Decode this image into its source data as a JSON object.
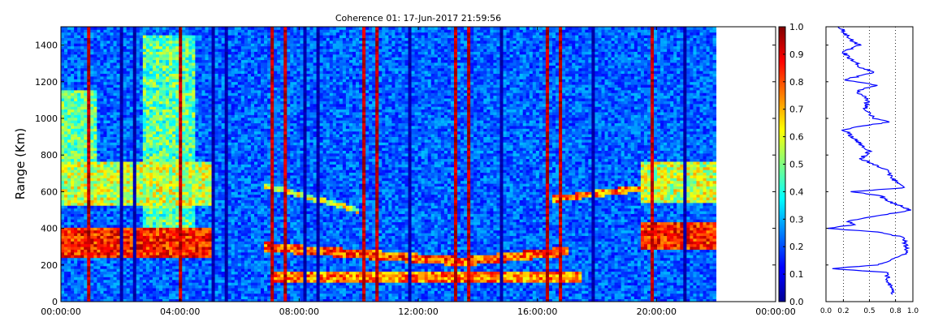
{
  "chart_data": [
    {
      "type": "heatmap",
      "title": "Coherence 01: 17-Jun-2017 21:59:56",
      "ylabel": "Range (Km)",
      "xlabel": "",
      "x_tick_labels": [
        "00:00:00",
        "04:00:00",
        "08:00:00",
        "12:00:00",
        "16:00:00",
        "20:00:00",
        "00:00:00"
      ],
      "x_tick_hours": [
        0,
        4,
        8,
        12,
        16,
        20,
        24
      ],
      "xlim_hours": [
        0,
        24
      ],
      "data_end_hours": 22.0,
      "ylim": [
        0,
        1500
      ],
      "y_ticks": [
        0,
        200,
        400,
        600,
        800,
        1000,
        1200,
        1400
      ],
      "colorscale": "jet",
      "colorbar": {
        "range": [
          0.0,
          1.0
        ],
        "ticks": [
          "0.0",
          "0.1",
          "0.2",
          "0.3",
          "0.4",
          "0.5",
          "0.6",
          "0.7",
          "0.8",
          "0.9",
          "1.0"
        ]
      },
      "features": [
        {
          "desc": "high coherence layer",
          "hours": [
            0,
            5
          ],
          "range_km": [
            240,
            400
          ],
          "value": 0.85
        },
        {
          "desc": "moderate coherence layer",
          "hours": [
            0,
            5
          ],
          "range_km": [
            550,
            750
          ],
          "value": 0.6
        },
        {
          "desc": "descending trace",
          "hours": [
            6.8,
            17
          ],
          "range_km": [
            180,
            320
          ],
          "value": 0.75
        },
        {
          "desc": "low trace",
          "hours": [
            7.2,
            17.5
          ],
          "range_km": [
            100,
            180
          ],
          "value": 0.7
        },
        {
          "desc": "high coherence layer",
          "hours": [
            19.5,
            22
          ],
          "range_km": [
            280,
            430
          ],
          "value": 0.85
        }
      ]
    },
    {
      "type": "line",
      "title": "",
      "xlabel": "",
      "ylabel": "",
      "xlim": [
        0.0,
        1.0
      ],
      "x_tick_labels": [
        "0.0",
        "0.2",
        "0.5",
        "0.8",
        "1.0"
      ],
      "x_ticks": [
        0.0,
        0.2,
        0.5,
        0.8,
        1.0
      ],
      "ylim": [
        0,
        1500
      ],
      "grid": "vertical dotted",
      "color": "#0000ff",
      "profile": {
        "range_km": [
          40,
          100,
          160,
          180,
          200,
          260,
          300,
          350,
          380,
          400,
          420,
          440,
          500,
          550,
          580,
          600,
          620,
          680,
          720,
          780,
          820,
          880,
          940,
          980,
          1000,
          1050,
          1100,
          1150,
          1180,
          1210,
          1250,
          1280,
          1320,
          1360,
          1400,
          1440,
          1480,
          1500
        ],
        "coherence": [
          0.78,
          0.72,
          0.7,
          0.05,
          0.6,
          0.92,
          0.92,
          0.9,
          0.6,
          0.0,
          0.35,
          0.25,
          0.98,
          0.7,
          0.62,
          0.28,
          0.88,
          0.75,
          0.7,
          0.4,
          0.5,
          0.35,
          0.2,
          0.72,
          0.55,
          0.45,
          0.48,
          0.35,
          0.6,
          0.2,
          0.55,
          0.4,
          0.3,
          0.2,
          0.38,
          0.25,
          0.2,
          0.15
        ]
      }
    }
  ]
}
